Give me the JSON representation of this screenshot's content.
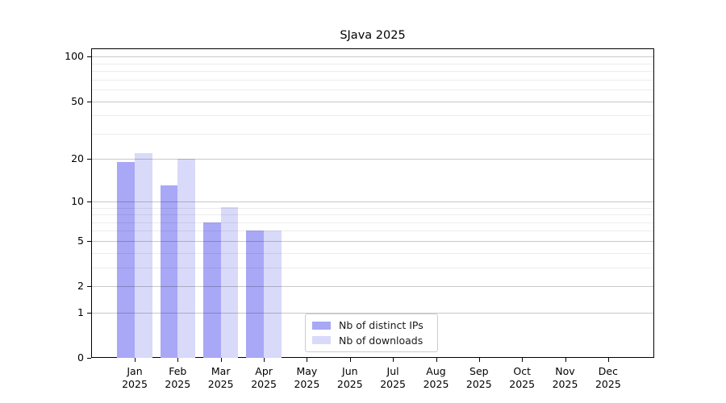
{
  "title": "SJava 2025",
  "chart_data": {
    "type": "bar",
    "title": "SJava 2025",
    "categories": [
      "Jan",
      "Feb",
      "Mar",
      "Apr",
      "May",
      "Jun",
      "Jul",
      "Aug",
      "Sep",
      "Oct",
      "Nov",
      "Dec"
    ],
    "year": "2025",
    "series": [
      {
        "name": "Nb of distinct IPs",
        "color": "#a8a8f6",
        "values": [
          19,
          13,
          7,
          6,
          0,
          0,
          0,
          0,
          0,
          0,
          0,
          0
        ]
      },
      {
        "name": "Nb of downloads",
        "color": "#d9d9fa",
        "values": [
          22,
          20,
          9,
          6,
          0,
          0,
          0,
          0,
          0,
          0,
          0,
          0
        ]
      }
    ],
    "xlabel": "",
    "ylabel": "",
    "y_axis": {
      "scale": "log10(1+value)",
      "major_ticks": [
        100,
        50,
        20,
        10,
        5,
        2,
        1,
        0
      ],
      "minor_ticks": [
        90,
        80,
        70,
        60,
        40,
        30,
        9,
        8,
        7,
        6,
        4,
        3
      ],
      "ylim": [
        0,
        112
      ]
    },
    "grid": "on",
    "legend_position": "bottom-center-inside"
  }
}
